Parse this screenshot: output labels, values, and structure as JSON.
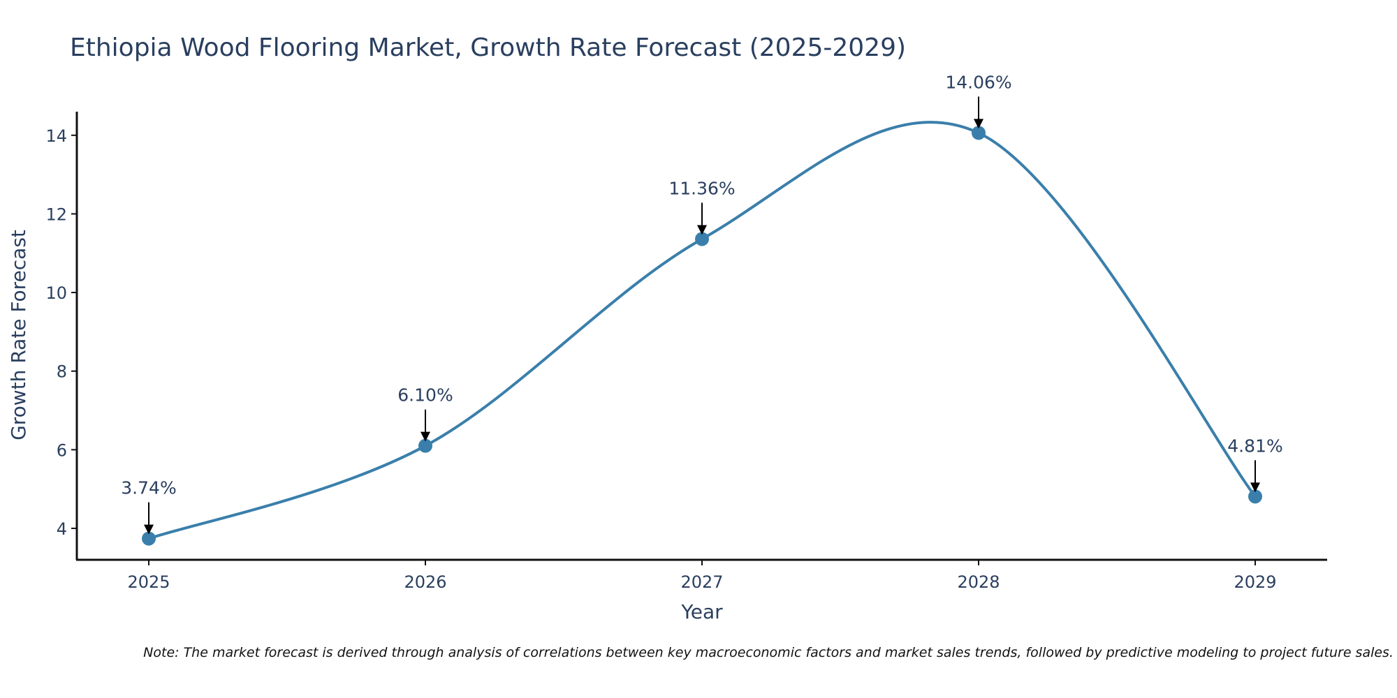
{
  "chart_data": {
    "type": "line",
    "title": "Ethiopia Wood Flooring Market, Growth Rate Forecast (2025-2029)",
    "xlabel": "Year",
    "ylabel": "Growth Rate Forecast",
    "x": [
      "2025",
      "2026",
      "2027",
      "2028",
      "2029"
    ],
    "series": [
      {
        "name": "Growth Rate Forecast",
        "values": [
          3.74,
          6.1,
          11.36,
          14.06,
          4.81
        ],
        "labels": [
          "3.74%",
          "6.10%",
          "11.36%",
          "14.06%",
          "4.81%"
        ]
      }
    ],
    "ylim": [
      3.2,
      14.6
    ],
    "yticks": [
      4,
      6,
      8,
      10,
      12,
      14
    ],
    "grid": false,
    "legend": "none",
    "line_color": "#3a7fab",
    "marker_color": "#3a7fab",
    "note": "Note: The market forecast is derived through analysis of correlations between key macroeconomic factors and market sales trends, followed by predictive modeling to project future sales."
  }
}
